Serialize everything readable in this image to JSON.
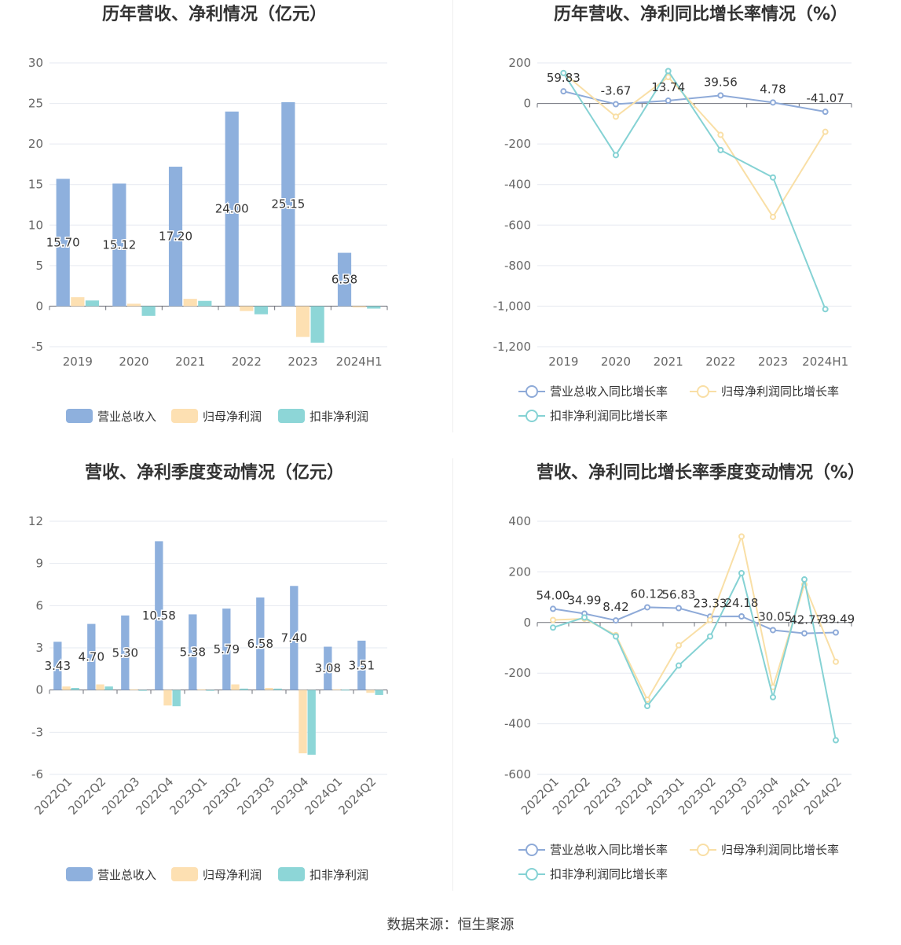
{
  "colors": {
    "revenue": "#8eb0dd",
    "net_profit": "#fde0b2",
    "deducted_profit": "#8dd6d7",
    "revenue_line": "#8eaad8",
    "net_line": "#f9dfa6",
    "deducted_line": "#85d2d4",
    "grid": "#e6e9f0",
    "axis": "#6e7079"
  },
  "source_text": "数据来源：恒生聚源",
  "chart_data": [
    {
      "id": "annual-amount",
      "type": "bar",
      "title": "历年营收、净利情况（亿元）",
      "categories": [
        "2019",
        "2020",
        "2021",
        "2022",
        "2023",
        "2024H1"
      ],
      "series": [
        {
          "name": "营业总收入",
          "values": [
            15.7,
            15.12,
            17.2,
            24.0,
            25.15,
            6.58
          ],
          "labels": [
            "15.70",
            "15.12",
            "17.20",
            "24.00",
            "25.15",
            "6.58"
          ]
        },
        {
          "name": "归母净利润",
          "values": [
            1.1,
            0.3,
            0.9,
            -0.6,
            -3.8,
            -0.15
          ]
        },
        {
          "name": "扣非净利润",
          "values": [
            0.7,
            -1.2,
            0.65,
            -1.0,
            -4.5,
            -0.3
          ]
        }
      ],
      "ylim": [
        -5,
        30
      ],
      "yticks": [
        "-5",
        "0",
        "5",
        "10",
        "15",
        "20",
        "25",
        "30"
      ],
      "ytick_values": [
        -5,
        0,
        5,
        10,
        15,
        20,
        25,
        30
      ],
      "grid": true,
      "legend_position": "bottom"
    },
    {
      "id": "annual-growth",
      "type": "line",
      "title": "历年营收、净利同比增长率情况（%）",
      "categories": [
        "2019",
        "2020",
        "2021",
        "2022",
        "2023",
        "2024H1"
      ],
      "series": [
        {
          "name": "营业总收入同比增长率",
          "values": [
            59.83,
            -3.67,
            13.74,
            39.56,
            4.78,
            -41.07
          ],
          "labels": [
            "59.83",
            "-3.67",
            "13.74",
            "39.56",
            "4.78",
            "-41.07"
          ]
        },
        {
          "name": "归母净利润同比增长率",
          "values": [
            150,
            -65,
            130,
            -155,
            -560,
            -140
          ]
        },
        {
          "name": "扣非净利润同比增长率",
          "values": [
            150,
            -255,
            160,
            -230,
            -365,
            -1015
          ]
        }
      ],
      "ylim": [
        -1200,
        200
      ],
      "yticks": [
        "-1,200",
        "-1,000",
        "-800",
        "-600",
        "-400",
        "-200",
        "0",
        "200"
      ],
      "ytick_values": [
        -1200,
        -1000,
        -800,
        -600,
        -400,
        -200,
        0,
        200
      ],
      "grid": true,
      "legend_position": "bottom"
    },
    {
      "id": "quarterly-amount",
      "type": "bar",
      "title": "营收、净利季度变动情况（亿元）",
      "categories": [
        "2022Q1",
        "2022Q2",
        "2022Q3",
        "2022Q4",
        "2023Q1",
        "2023Q2",
        "2023Q3",
        "2023Q4",
        "2024Q1",
        "2024Q2"
      ],
      "series": [
        {
          "name": "营业总收入",
          "values": [
            3.43,
            4.7,
            5.3,
            10.58,
            5.38,
            5.79,
            6.58,
            7.4,
            3.08,
            3.51
          ],
          "labels": [
            "3.43",
            "4.70",
            "5.30",
            "10.58",
            "5.38",
            "5.79",
            "6.58",
            "7.40",
            "3.08",
            "3.51"
          ]
        },
        {
          "name": "归母净利润",
          "values": [
            0.25,
            0.4,
            0.05,
            -1.1,
            0.05,
            0.4,
            0.15,
            -4.5,
            0.05,
            -0.2
          ]
        },
        {
          "name": "扣非净利润",
          "values": [
            0.15,
            0.25,
            -0.05,
            -1.15,
            -0.05,
            0.1,
            0.1,
            -4.6,
            0.02,
            -0.35
          ]
        }
      ],
      "ylim": [
        -6,
        12
      ],
      "yticks": [
        "-6",
        "-3",
        "0",
        "3",
        "6",
        "9",
        "12"
      ],
      "ytick_values": [
        -6,
        -3,
        0,
        3,
        6,
        9,
        12
      ],
      "grid": true,
      "legend_position": "bottom"
    },
    {
      "id": "quarterly-growth",
      "type": "line",
      "title": "营收、净利同比增长率季度变动情况（%）",
      "categories": [
        "2022Q1",
        "2022Q2",
        "2022Q3",
        "2022Q4",
        "2023Q1",
        "2023Q2",
        "2023Q3",
        "2023Q4",
        "2024Q1",
        "2024Q2"
      ],
      "series": [
        {
          "name": "营业总收入同比增长率",
          "values": [
            54.0,
            34.99,
            8.42,
            60.12,
            56.83,
            23.33,
            24.18,
            -30.05,
            -42.77,
            -39.49
          ],
          "labels": [
            "54.00",
            "34.99",
            "8.42",
            "60.12",
            "56.83",
            "23.33",
            "24.18",
            "-30.05",
            "-42.77",
            "-39.49"
          ]
        },
        {
          "name": "归母净利润同比增长率",
          "values": [
            10,
            15,
            -50,
            -305,
            -90,
            10,
            340,
            -255,
            150,
            -155
          ]
        },
        {
          "name": "扣非净利润同比增长率",
          "values": [
            -20,
            20,
            -55,
            -330,
            -170,
            -55,
            195,
            -295,
            170,
            -465
          ]
        }
      ],
      "ylim": [
        -600,
        400
      ],
      "yticks": [
        "-600",
        "-400",
        "-200",
        "0",
        "200",
        "400"
      ],
      "ytick_values": [
        -600,
        -400,
        -200,
        0,
        200,
        400
      ],
      "grid": true,
      "legend_position": "bottom"
    }
  ]
}
